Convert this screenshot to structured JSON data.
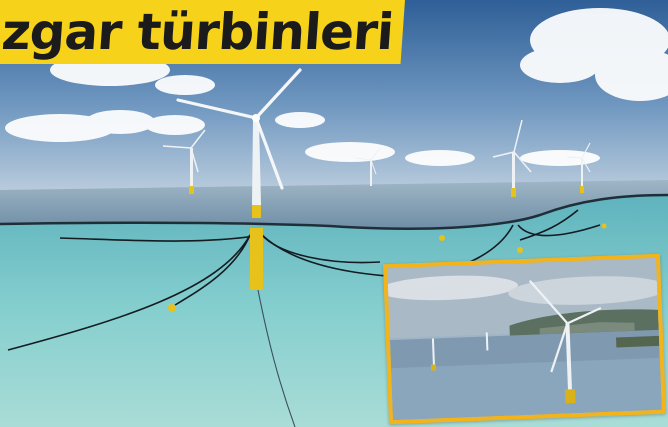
{
  "headline": {
    "text": "zgar türbinleri"
  },
  "colors": {
    "headline_bg": "#f7d21a",
    "inset_border": "#f2b41a",
    "turbine_float": "#e6c21a",
    "sky": "#3d6fa3",
    "sea_underwater": "#7cc6c7"
  }
}
